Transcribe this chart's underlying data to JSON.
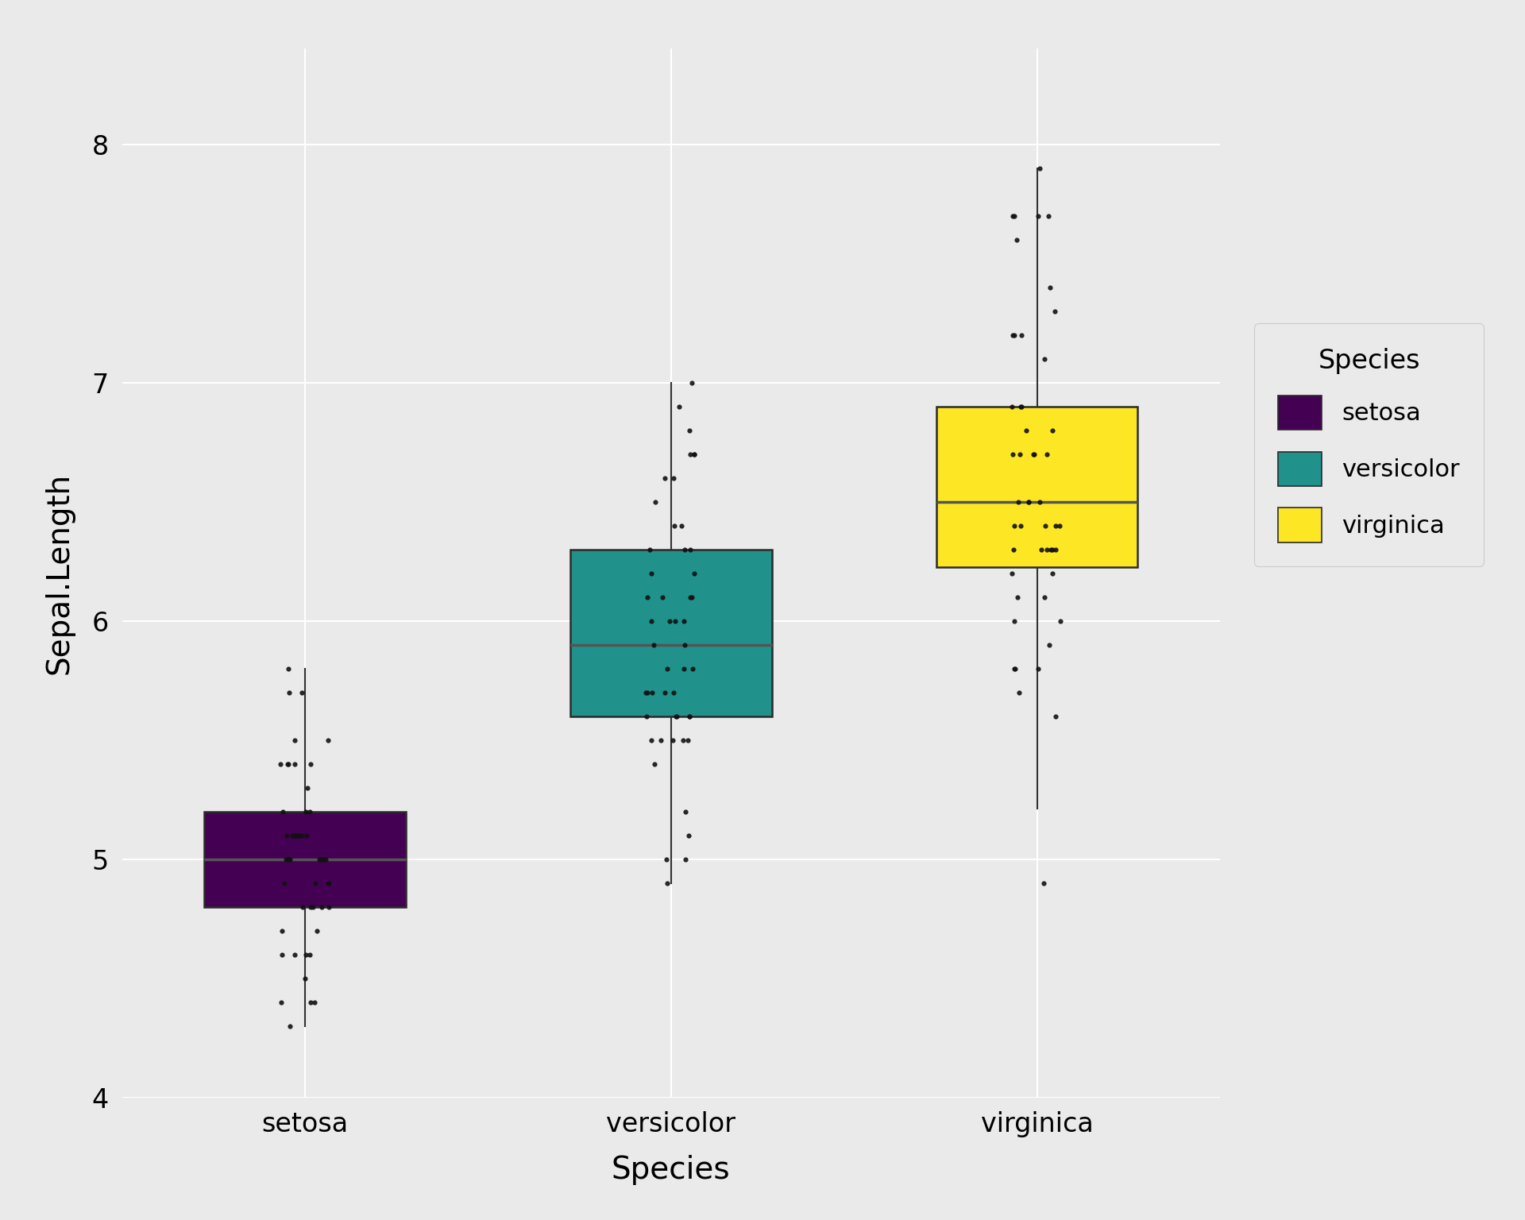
{
  "title": "",
  "xlabel": "Species",
  "ylabel": "Sepal.Length",
  "species": [
    "setosa",
    "versicolor",
    "virginica"
  ],
  "colors": [
    "#440154",
    "#21918C",
    "#FDE725"
  ],
  "background_color": "#EAEAEA",
  "panel_background": "#EAEAEA",
  "grid_color": "#FFFFFF",
  "ylim": [
    4.0,
    8.4
  ],
  "yticks": [
    4,
    5,
    6,
    7,
    8
  ],
  "ytick_labels": [
    "4",
    "5",
    "6",
    "7",
    "8"
  ],
  "legend_title": "Species",
  "setosa": [
    5.1,
    4.9,
    4.7,
    4.6,
    5.0,
    5.4,
    4.6,
    5.0,
    4.4,
    4.9,
    5.4,
    4.8,
    4.8,
    4.3,
    5.8,
    5.7,
    5.4,
    5.1,
    5.7,
    5.1,
    5.4,
    5.1,
    4.6,
    5.1,
    4.8,
    5.0,
    5.0,
    5.2,
    5.2,
    4.7,
    4.8,
    5.4,
    5.2,
    5.5,
    4.9,
    5.0,
    5.5,
    4.9,
    4.4,
    5.1,
    5.0,
    4.5,
    4.4,
    5.0,
    5.1,
    4.8,
    5.1,
    4.6,
    5.3,
    5.0
  ],
  "versicolor": [
    7.0,
    6.4,
    6.9,
    5.5,
    6.5,
    5.7,
    6.3,
    4.9,
    6.6,
    5.2,
    5.0,
    5.9,
    6.0,
    6.1,
    5.6,
    6.7,
    5.6,
    5.8,
    6.2,
    5.6,
    5.9,
    6.1,
    6.3,
    6.1,
    6.4,
    6.6,
    6.8,
    6.7,
    6.0,
    5.7,
    5.5,
    5.5,
    5.8,
    6.0,
    5.4,
    6.0,
    6.7,
    6.3,
    5.6,
    5.5,
    5.5,
    6.1,
    5.8,
    5.0,
    5.6,
    5.7,
    5.7,
    6.2,
    5.1,
    5.7
  ],
  "virginica": [
    6.3,
    5.8,
    7.1,
    6.3,
    6.5,
    7.6,
    4.9,
    7.3,
    6.7,
    7.2,
    6.5,
    6.4,
    6.8,
    5.7,
    5.8,
    6.4,
    6.5,
    7.7,
    7.7,
    6.0,
    6.9,
    5.6,
    7.7,
    6.3,
    6.7,
    7.2,
    6.2,
    6.1,
    6.4,
    7.2,
    7.4,
    7.9,
    6.4,
    6.3,
    6.1,
    7.7,
    6.3,
    6.4,
    6.0,
    6.9,
    6.7,
    6.9,
    5.8,
    6.8,
    6.7,
    6.7,
    6.3,
    6.5,
    6.2,
    5.9
  ],
  "jitter_seed": 42,
  "box_width": 0.55,
  "median_color": "#555555",
  "whisker_color": "#333333",
  "dot_size": 20,
  "dot_color": "#111111",
  "dot_alpha": 0.9,
  "jitter_amount": 0.07,
  "tick_fontsize": 24,
  "label_fontsize": 28,
  "legend_title_fontsize": 24,
  "legend_fontsize": 22
}
